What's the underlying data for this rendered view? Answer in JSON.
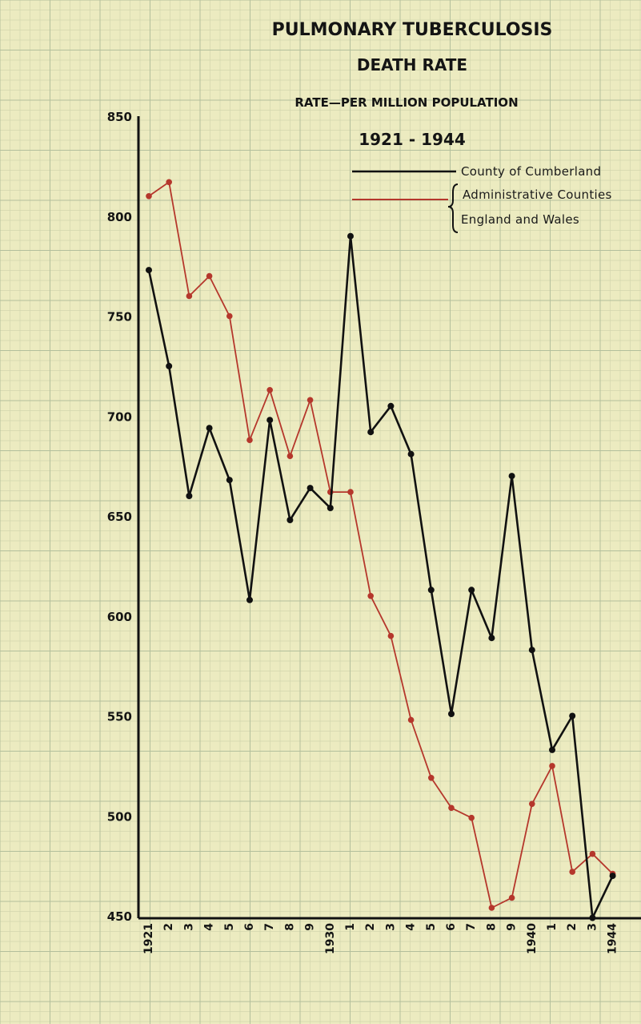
{
  "chart_data": {
    "type": "line",
    "title": "PULMONARY TUBERCULOSIS",
    "subtitle": "DEATH RATE",
    "ylabel": "RATE—PER MILLION POPULATION",
    "period": "1921 - 1944",
    "x": [
      1921,
      1922,
      1923,
      1924,
      1925,
      1926,
      1927,
      1928,
      1929,
      1930,
      1931,
      1932,
      1933,
      1934,
      1935,
      1936,
      1937,
      1938,
      1939,
      1940,
      1941,
      1942,
      1943,
      1944
    ],
    "x_tick_labels": [
      "1921",
      "2",
      "3",
      "4",
      "5",
      "6",
      "7",
      "8",
      "9",
      "1930",
      "1",
      "2",
      "3",
      "4",
      "5",
      "6",
      "7",
      "8",
      "9",
      "1940",
      "1",
      "2",
      "3",
      "1944"
    ],
    "ylim": [
      450,
      850
    ],
    "y_ticks": [
      450,
      500,
      550,
      600,
      650,
      700,
      750,
      800,
      850
    ],
    "grid": true,
    "legend_placement": "top-right",
    "legend_group_label": "England and Wales",
    "series": [
      {
        "name": "County of Cumberland",
        "color": "#111111",
        "values": [
          773,
          725,
          660,
          694,
          668,
          608,
          698,
          648,
          664,
          654,
          790,
          692,
          705,
          681,
          613,
          551,
          613,
          589,
          670,
          583,
          533,
          550,
          449,
          470
        ]
      },
      {
        "name": "Administrative Counties",
        "color": "#b5372c",
        "values": [
          810,
          817,
          760,
          770,
          750,
          688,
          713,
          680,
          708,
          662,
          662,
          610,
          590,
          548,
          519,
          504,
          499,
          454,
          459,
          506,
          525,
          472,
          481,
          471
        ]
      }
    ]
  }
}
